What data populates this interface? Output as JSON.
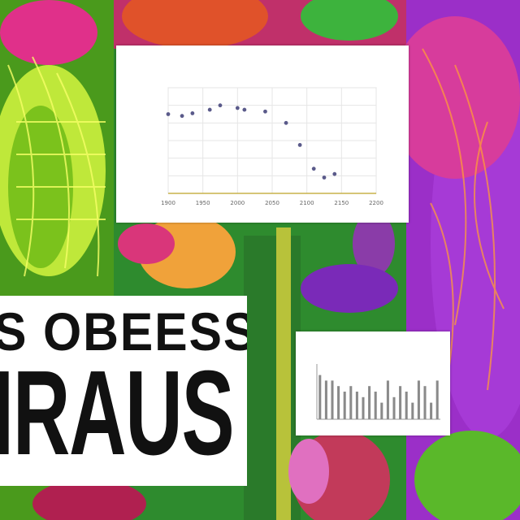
{
  "poster": {
    "line1": "S OBEESS",
    "line2": "IRAUS"
  },
  "chart_data": [
    {
      "type": "scatter",
      "title": "",
      "xlabel": "",
      "ylabel": "",
      "x_ticks": [
        "1900",
        "1950",
        "2000",
        "2050",
        "2100",
        "2150",
        "2200"
      ],
      "x": [
        1900,
        1920,
        1935,
        1960,
        1975,
        2000,
        2010,
        2040,
        2070,
        2090,
        2110,
        2125,
        2140
      ],
      "y": [
        0.9,
        0.88,
        0.91,
        0.95,
        1.0,
        0.97,
        0.95,
        0.93,
        0.8,
        0.55,
        0.28,
        0.18,
        0.22
      ],
      "ylim": [
        0,
        1.2
      ],
      "grid": true
    },
    {
      "type": "bar",
      "title": "",
      "xlabel": "",
      "ylabel": "",
      "values": [
        8,
        7,
        7,
        6,
        5,
        6,
        5,
        4,
        6,
        5,
        3,
        7,
        4,
        6,
        5,
        3,
        7,
        6,
        3,
        7
      ],
      "ylim": [
        0,
        10
      ],
      "grid": false
    }
  ]
}
